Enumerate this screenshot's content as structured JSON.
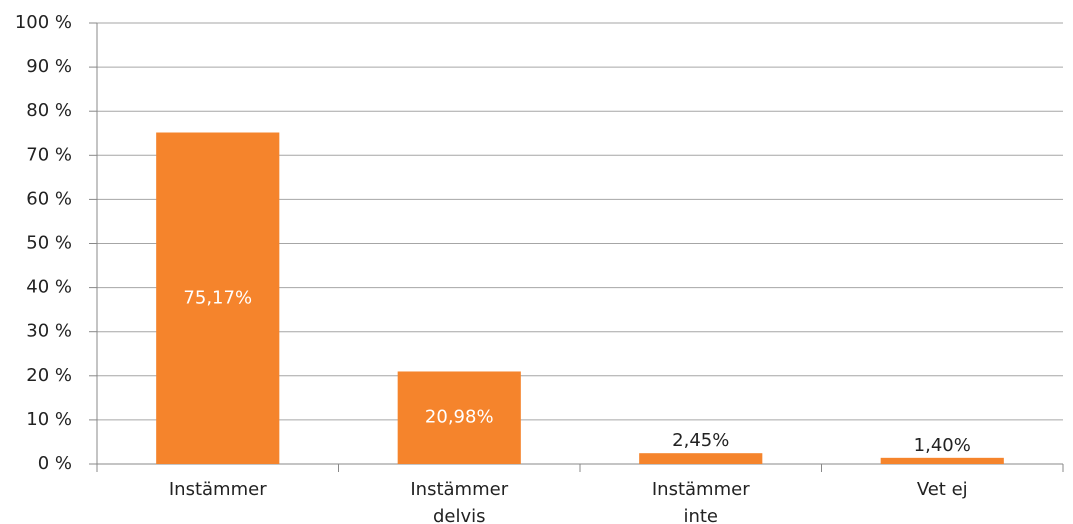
{
  "chart_data": {
    "type": "bar",
    "categories": [
      "Instämmer",
      "Instämmer delvis",
      "Instämmer inte",
      "Vet ej"
    ],
    "values": [
      75.17,
      20.98,
      2.45,
      1.4
    ],
    "value_labels": [
      "75,17%",
      "20,98%",
      "2,45%",
      "1,40%"
    ],
    "color": "#f5842c",
    "ylim": [
      0,
      100
    ],
    "yticks": [
      {
        "value": 0,
        "label": "0 %"
      },
      {
        "value": 10,
        "label": "10 %"
      },
      {
        "value": 20,
        "label": "20 %"
      },
      {
        "value": 30,
        "label": "30 %"
      },
      {
        "value": 40,
        "label": "40 %"
      },
      {
        "value": 50,
        "label": "50 %"
      },
      {
        "value": 60,
        "label": "60 %"
      },
      {
        "value": 70,
        "label": "70 %"
      },
      {
        "value": 80,
        "label": "80 %"
      },
      {
        "value": 90,
        "label": "90 %"
      },
      {
        "value": 100,
        "label": "100 %"
      }
    ],
    "grid": true
  }
}
